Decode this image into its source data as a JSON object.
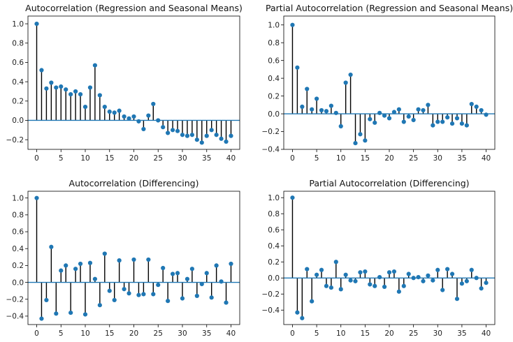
{
  "colors": {
    "marker": "#1f77b4",
    "stem": "#000000",
    "baseline": "#1f77b4",
    "axis": "#000000"
  },
  "chart_data": [
    {
      "type": "stem",
      "title": "Autocorrelation (Regression and Seasonal Means)",
      "xlim": [
        -1.8,
        41.8
      ],
      "ylim": [
        -0.3,
        1.08
      ],
      "xticks": [
        0,
        5,
        10,
        15,
        20,
        25,
        30,
        35,
        40
      ],
      "yticks": [
        -0.2,
        0.0,
        0.2,
        0.4,
        0.6,
        0.8,
        1.0
      ],
      "ytick_labels": [
        "−0.2",
        "0.0",
        "0.2",
        "0.4",
        "0.6",
        "0.8",
        "1.0"
      ],
      "grid": false,
      "x": [
        0,
        1,
        2,
        3,
        4,
        5,
        6,
        7,
        8,
        9,
        10,
        11,
        12,
        13,
        14,
        15,
        16,
        17,
        18,
        19,
        20,
        21,
        22,
        23,
        24,
        25,
        26,
        27,
        28,
        29,
        30,
        31,
        32,
        33,
        34,
        35,
        36,
        37,
        38,
        39,
        40
      ],
      "values": [
        1.0,
        0.52,
        0.33,
        0.39,
        0.34,
        0.35,
        0.32,
        0.27,
        0.3,
        0.27,
        0.14,
        0.34,
        0.57,
        0.26,
        0.14,
        0.09,
        0.08,
        0.1,
        0.04,
        0.02,
        0.04,
        -0.01,
        -0.09,
        0.05,
        0.17,
        0.0,
        -0.07,
        -0.13,
        -0.1,
        -0.11,
        -0.15,
        -0.16,
        -0.15,
        -0.2,
        -0.23,
        -0.16,
        -0.1,
        -0.15,
        -0.19,
        -0.22,
        -0.16
      ]
    },
    {
      "type": "stem",
      "title": "Partial Autocorrelation (Regression and Seasonal Means)",
      "xlim": [
        -1.8,
        41.8
      ],
      "ylim": [
        -0.4,
        1.1
      ],
      "xticks": [
        0,
        5,
        10,
        15,
        20,
        25,
        30,
        35,
        40
      ],
      "yticks": [
        -0.4,
        -0.2,
        0.0,
        0.2,
        0.4,
        0.6,
        0.8,
        1.0
      ],
      "ytick_labels": [
        "−0.4",
        "−0.2",
        "0.0",
        "0.2",
        "0.4",
        "0.6",
        "0.8",
        "1.0"
      ],
      "grid": false,
      "x": [
        0,
        1,
        2,
        3,
        4,
        5,
        6,
        7,
        8,
        9,
        10,
        11,
        12,
        13,
        14,
        15,
        16,
        17,
        18,
        19,
        20,
        21,
        22,
        23,
        24,
        25,
        26,
        27,
        28,
        29,
        30,
        31,
        32,
        33,
        34,
        35,
        36,
        37,
        38,
        39,
        40
      ],
      "values": [
        1.0,
        0.52,
        0.08,
        0.28,
        0.05,
        0.17,
        0.04,
        0.03,
        0.09,
        0.01,
        -0.14,
        0.35,
        0.44,
        -0.33,
        -0.23,
        -0.3,
        -0.06,
        -0.1,
        0.01,
        -0.02,
        -0.05,
        0.02,
        0.05,
        -0.09,
        -0.03,
        -0.07,
        0.05,
        0.04,
        0.1,
        -0.13,
        -0.09,
        -0.09,
        -0.04,
        -0.11,
        -0.05,
        -0.11,
        -0.13,
        0.11,
        0.08,
        0.04,
        -0.01
      ]
    },
    {
      "type": "stem",
      "title": "Autocorrelation (Differencing)",
      "xlim": [
        -1.8,
        41.8
      ],
      "ylim": [
        -0.5,
        1.08
      ],
      "xticks": [
        0,
        5,
        10,
        15,
        20,
        25,
        30,
        35,
        40
      ],
      "yticks": [
        -0.4,
        -0.2,
        0.0,
        0.2,
        0.4,
        0.6,
        0.8,
        1.0
      ],
      "ytick_labels": [
        "−0.4",
        "−0.2",
        "0.0",
        "0.2",
        "0.4",
        "0.6",
        "0.8",
        "1.0"
      ],
      "grid": false,
      "x": [
        0,
        1,
        2,
        3,
        4,
        5,
        6,
        7,
        8,
        9,
        10,
        11,
        12,
        13,
        14,
        15,
        16,
        17,
        18,
        19,
        20,
        21,
        22,
        23,
        24,
        25,
        26,
        27,
        28,
        29,
        30,
        31,
        32,
        33,
        34,
        35,
        36,
        37,
        38,
        39,
        40
      ],
      "values": [
        1.0,
        -0.43,
        -0.21,
        0.42,
        -0.37,
        0.14,
        0.2,
        -0.36,
        0.16,
        0.22,
        -0.38,
        0.23,
        0.04,
        -0.27,
        0.34,
        -0.1,
        -0.21,
        0.26,
        -0.08,
        -0.13,
        0.27,
        -0.15,
        -0.14,
        0.27,
        -0.14,
        -0.03,
        0.17,
        -0.22,
        0.1,
        0.11,
        -0.19,
        0.04,
        0.16,
        -0.16,
        -0.02,
        0.11,
        -0.18,
        0.2,
        0.01,
        -0.24,
        0.22
      ]
    },
    {
      "type": "stem",
      "title": "Partial Autocorrelation (Differencing)",
      "xlim": [
        -1.8,
        41.8
      ],
      "ylim": [
        -0.58,
        1.08
      ],
      "xticks": [
        0,
        5,
        10,
        15,
        20,
        25,
        30,
        35,
        40
      ],
      "yticks": [
        -0.4,
        -0.2,
        0.0,
        0.2,
        0.4,
        0.6,
        0.8,
        1.0
      ],
      "ytick_labels": [
        "−0.4",
        "−0.2",
        "0.0",
        "0.2",
        "0.4",
        "0.6",
        "0.8",
        "1.0"
      ],
      "grid": false,
      "x": [
        0,
        1,
        2,
        3,
        4,
        5,
        6,
        7,
        8,
        9,
        10,
        11,
        12,
        13,
        14,
        15,
        16,
        17,
        18,
        19,
        20,
        21,
        22,
        23,
        24,
        25,
        26,
        27,
        28,
        29,
        30,
        31,
        32,
        33,
        34,
        35,
        36,
        37,
        38,
        39,
        40
      ],
      "values": [
        1.0,
        -0.43,
        -0.5,
        0.11,
        -0.29,
        0.04,
        0.1,
        -0.1,
        -0.12,
        0.2,
        -0.14,
        0.04,
        -0.03,
        -0.04,
        0.07,
        0.08,
        -0.08,
        -0.1,
        0.01,
        -0.11,
        0.07,
        0.08,
        -0.17,
        -0.1,
        0.05,
        0.0,
        0.01,
        -0.04,
        0.03,
        -0.03,
        0.1,
        -0.15,
        0.11,
        0.05,
        -0.26,
        -0.07,
        -0.04,
        0.1,
        0.0,
        -0.13,
        -0.06
      ]
    }
  ]
}
